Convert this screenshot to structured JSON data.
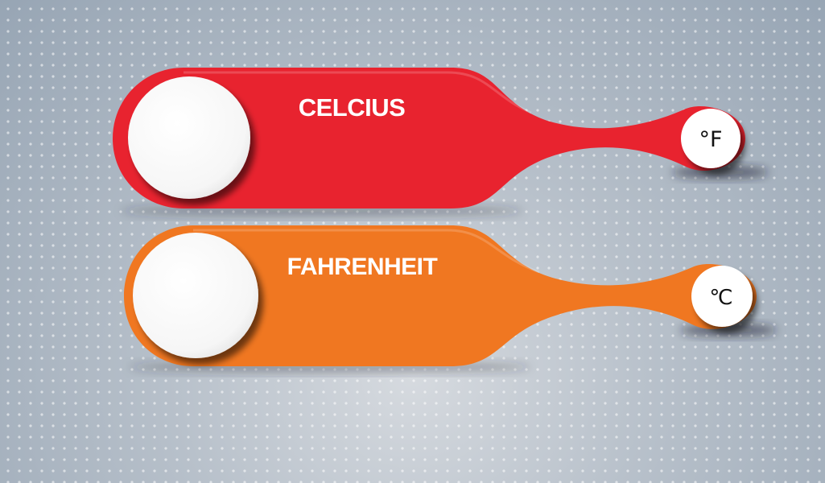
{
  "converter_cards": [
    {
      "title": "CELCIUS",
      "unit": "°F",
      "color": "#e8232f"
    },
    {
      "title": "FAHRENHEIT",
      "unit": "℃",
      "color": "#f07721"
    }
  ],
  "background_color": "#a3afbb"
}
